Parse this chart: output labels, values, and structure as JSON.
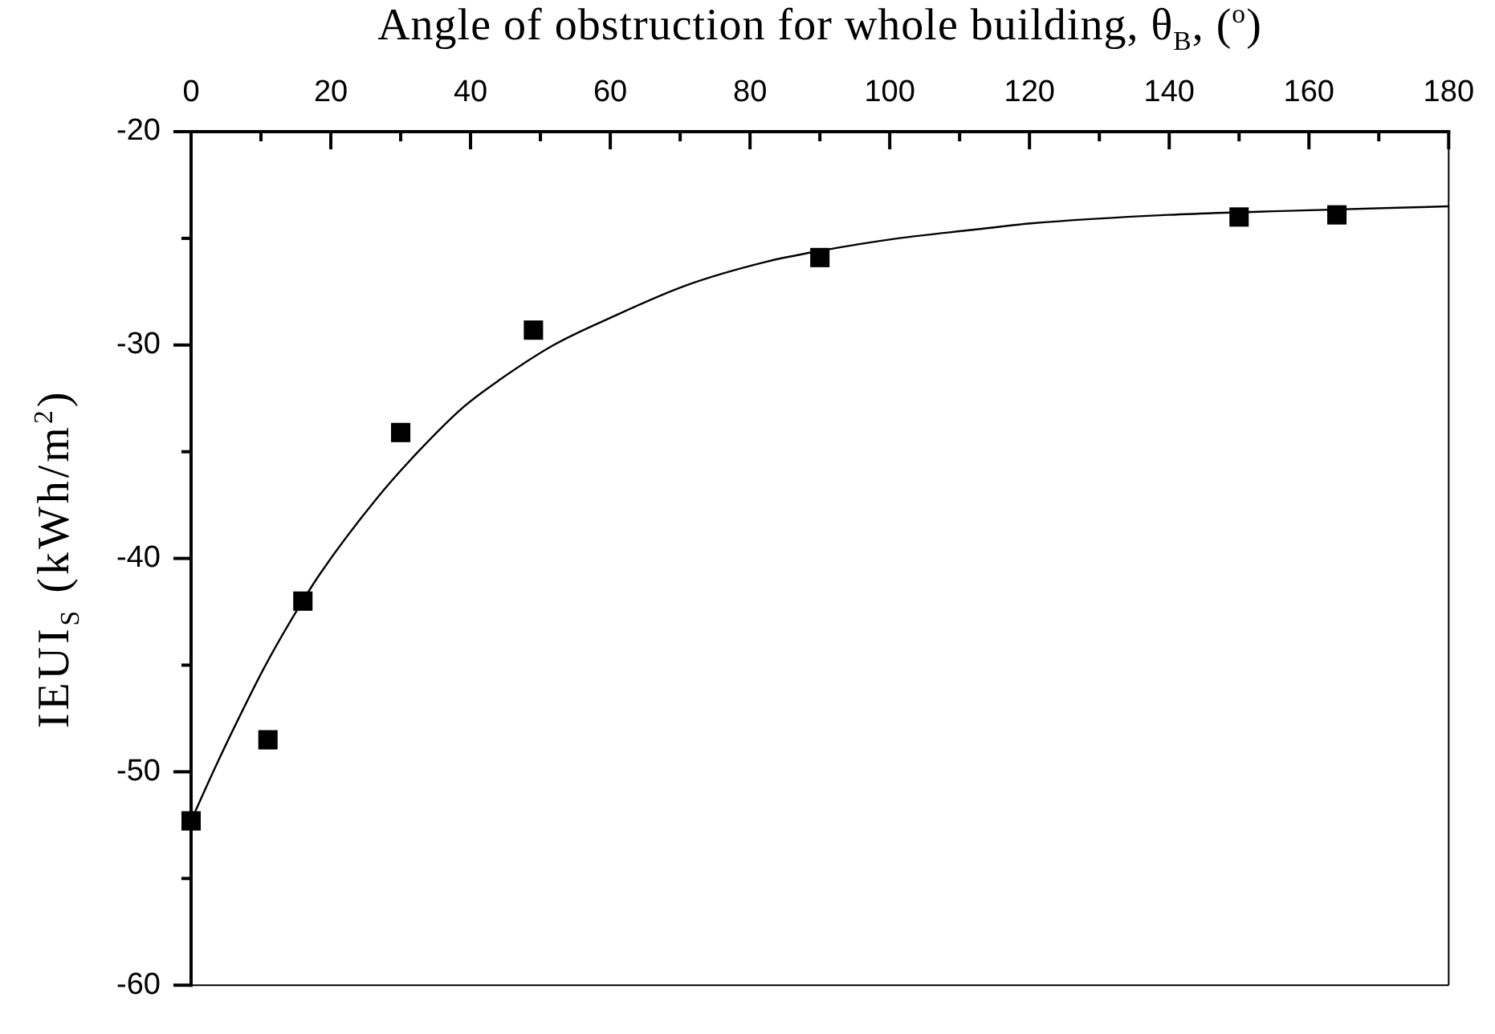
{
  "chart_data": {
    "type": "scatter",
    "xlabel": "Angle of obstruction for whole building, θ$_{B}$, ($^{o}$)",
    "ylabel": "IEUI$_{S}$ (kWh/m$^{2}$)",
    "xlim": [
      0,
      180
    ],
    "xticks": [
      0,
      {
        "value": 10,
        "label": null
      },
      20,
      {
        "value": 30,
        "label": null
      },
      40,
      {
        "value": 50,
        "label": null
      },
      60,
      {
        "value": 70,
        "label": null
      },
      80,
      {
        "value": 90,
        "label": null
      },
      100,
      {
        "value": 110,
        "label": null
      },
      120,
      {
        "value": 130,
        "label": null
      },
      140,
      {
        "value": 150,
        "label": null
      },
      160,
      {
        "value": 170,
        "label": null
      },
      180
    ],
    "ylim": [
      -60,
      -20
    ],
    "yticks": [
      -60,
      {
        "value": -55,
        "label": null
      },
      -50,
      {
        "value": -45,
        "label": null
      },
      -40,
      {
        "value": -35,
        "label": null
      },
      -30,
      {
        "value": -25,
        "label": null
      },
      -20
    ],
    "marker": "square",
    "series": [
      {
        "type": "scatter",
        "color": "#000000",
        "x": [
          0,
          11,
          16,
          30,
          49,
          90,
          150,
          164
        ],
        "values": [
          -52.3,
          -48.5,
          -42.0,
          -34.1,
          -29.3,
          -25.9,
          -24.0,
          -23.9
        ]
      },
      {
        "type": "line",
        "color": "#000000",
        "marker": "none",
        "x": [
          0,
          3.3,
          7.1,
          10.5,
          14.3,
          18.5,
          26.8,
          32.5,
          39.0,
          44.3,
          51.9,
          59.5,
          70.9,
          82.3,
          89.8,
          101.2,
          111.9,
          120.2,
          139.9,
          158.1,
          180
        ],
        "values": [
          -52.3,
          -49.9,
          -47.3,
          -45.1,
          -42.9,
          -40.7,
          -37.1,
          -35.0,
          -32.9,
          -31.6,
          -30.0,
          -28.8,
          -27.2,
          -26.1,
          -25.6,
          -25.0,
          -24.6,
          -24.3,
          -23.9,
          -23.7,
          -23.5
        ]
      }
    ]
  }
}
